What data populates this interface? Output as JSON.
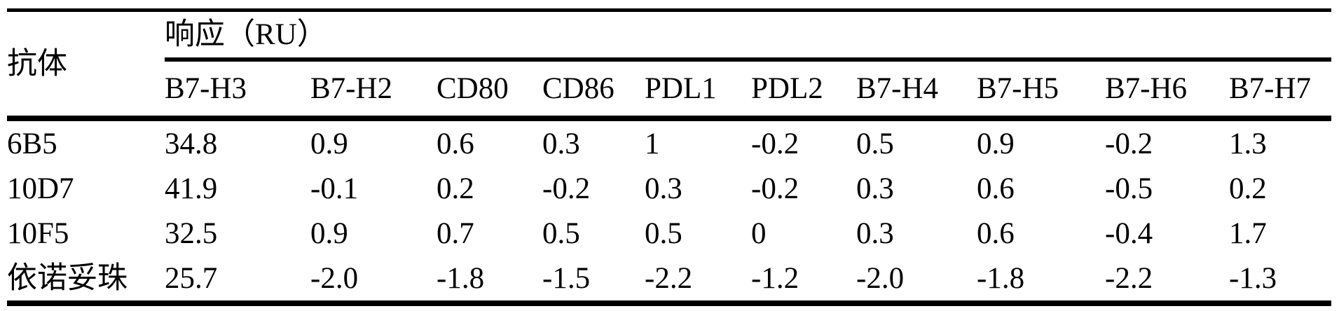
{
  "table": {
    "row_header_label": "抗体",
    "group_header": "响应（RU）",
    "columns": [
      "B7-H3",
      "B7-H2",
      "CD80",
      "CD86",
      "PDL1",
      "PDL2",
      "B7-H4",
      "B7-H5",
      "B7-H6",
      "B7-H7"
    ],
    "rows": [
      {
        "label": "6B5",
        "values": [
          "34.8",
          "0.9",
          "0.6",
          "0.3",
          "1",
          "-0.2",
          "0.5",
          "0.9",
          "-0.2",
          "1.3"
        ]
      },
      {
        "label": "10D7",
        "values": [
          "41.9",
          "-0.1",
          "0.2",
          "-0.2",
          "0.3",
          "-0.2",
          "0.3",
          "0.6",
          "-0.5",
          "0.2"
        ]
      },
      {
        "label": "10F5",
        "values": [
          "32.5",
          "0.9",
          "0.7",
          "0.5",
          "0.5",
          "0",
          "0.3",
          "0.6",
          "-0.4",
          "1.7"
        ]
      },
      {
        "label": "依诺妥珠",
        "values": [
          "25.7",
          "-2.0",
          "-1.8",
          "-1.5",
          "-2.2",
          "-1.2",
          "-2.0",
          "-1.8",
          "-2.2",
          "-1.3"
        ]
      }
    ],
    "colors": {
      "text": "#000000",
      "background": "#ffffff",
      "rule": "#000000"
    }
  }
}
